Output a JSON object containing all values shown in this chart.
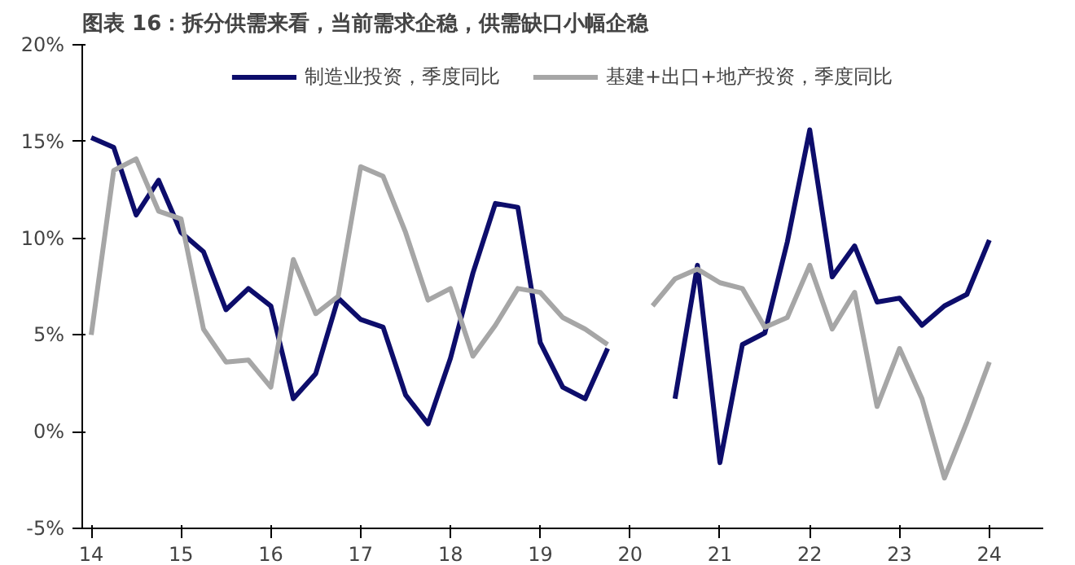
{
  "chart_data": {
    "type": "line",
    "title": "图表 16：拆分供需来看，当前需求企稳，供需缺口小幅企稳",
    "x": [
      14,
      14.25,
      14.5,
      14.75,
      15,
      15.25,
      15.5,
      15.75,
      16,
      16.25,
      16.5,
      16.75,
      17,
      17.25,
      17.5,
      17.75,
      18,
      18.25,
      18.5,
      18.75,
      19,
      19.25,
      19.5,
      19.75,
      20,
      20.25,
      20.5,
      20.75,
      21,
      21.25,
      21.5,
      21.75,
      22,
      22.25,
      22.5,
      22.75,
      23,
      23.25,
      23.5,
      23.75,
      24
    ],
    "series": [
      {
        "name": "制造业投资，季度同比",
        "color": "#0d0d6b",
        "values": [
          15.2,
          14.7,
          11.2,
          13.0,
          10.3,
          9.3,
          6.3,
          7.4,
          6.5,
          1.7,
          3.0,
          6.9,
          5.8,
          5.4,
          1.9,
          0.4,
          3.8,
          8.2,
          11.8,
          11.6,
          4.6,
          2.3,
          1.7,
          4.3,
          null,
          null,
          1.7,
          8.6,
          -1.6,
          4.5,
          5.1,
          9.8,
          15.6,
          8.0,
          9.6,
          6.7,
          6.9,
          5.5,
          6.5,
          7.1,
          9.9
        ]
      },
      {
        "name": "基建+出口+地产投资，季度同比",
        "color": "#a6a6a6",
        "values": [
          5.0,
          13.5,
          14.1,
          11.4,
          11.0,
          5.3,
          3.6,
          3.7,
          2.3,
          8.9,
          6.1,
          7.0,
          13.7,
          13.2,
          10.3,
          6.8,
          7.4,
          3.9,
          5.5,
          7.4,
          7.2,
          5.9,
          5.3,
          4.5,
          null,
          6.5,
          7.9,
          8.4,
          7.7,
          7.4,
          5.4,
          5.9,
          8.6,
          5.3,
          7.2,
          1.3,
          4.3,
          1.7,
          -2.4,
          0.5,
          3.6
        ]
      }
    ],
    "xlim": [
      13.9,
      24.6
    ],
    "xticks": [
      14,
      15,
      16,
      17,
      18,
      19,
      20,
      21,
      22,
      23,
      24
    ],
    "ylim": [
      -5,
      20
    ],
    "yticks": [
      {
        "value": -5,
        "label": "-5%"
      },
      {
        "value": 0,
        "label": "0%"
      },
      {
        "value": 5,
        "label": "5%"
      },
      {
        "value": 10,
        "label": "10%"
      },
      {
        "value": 15,
        "label": "15%"
      },
      {
        "value": 20,
        "label": "20%"
      }
    ],
    "grid": false,
    "legend": "top",
    "marker": "none",
    "line_style": "solid"
  }
}
